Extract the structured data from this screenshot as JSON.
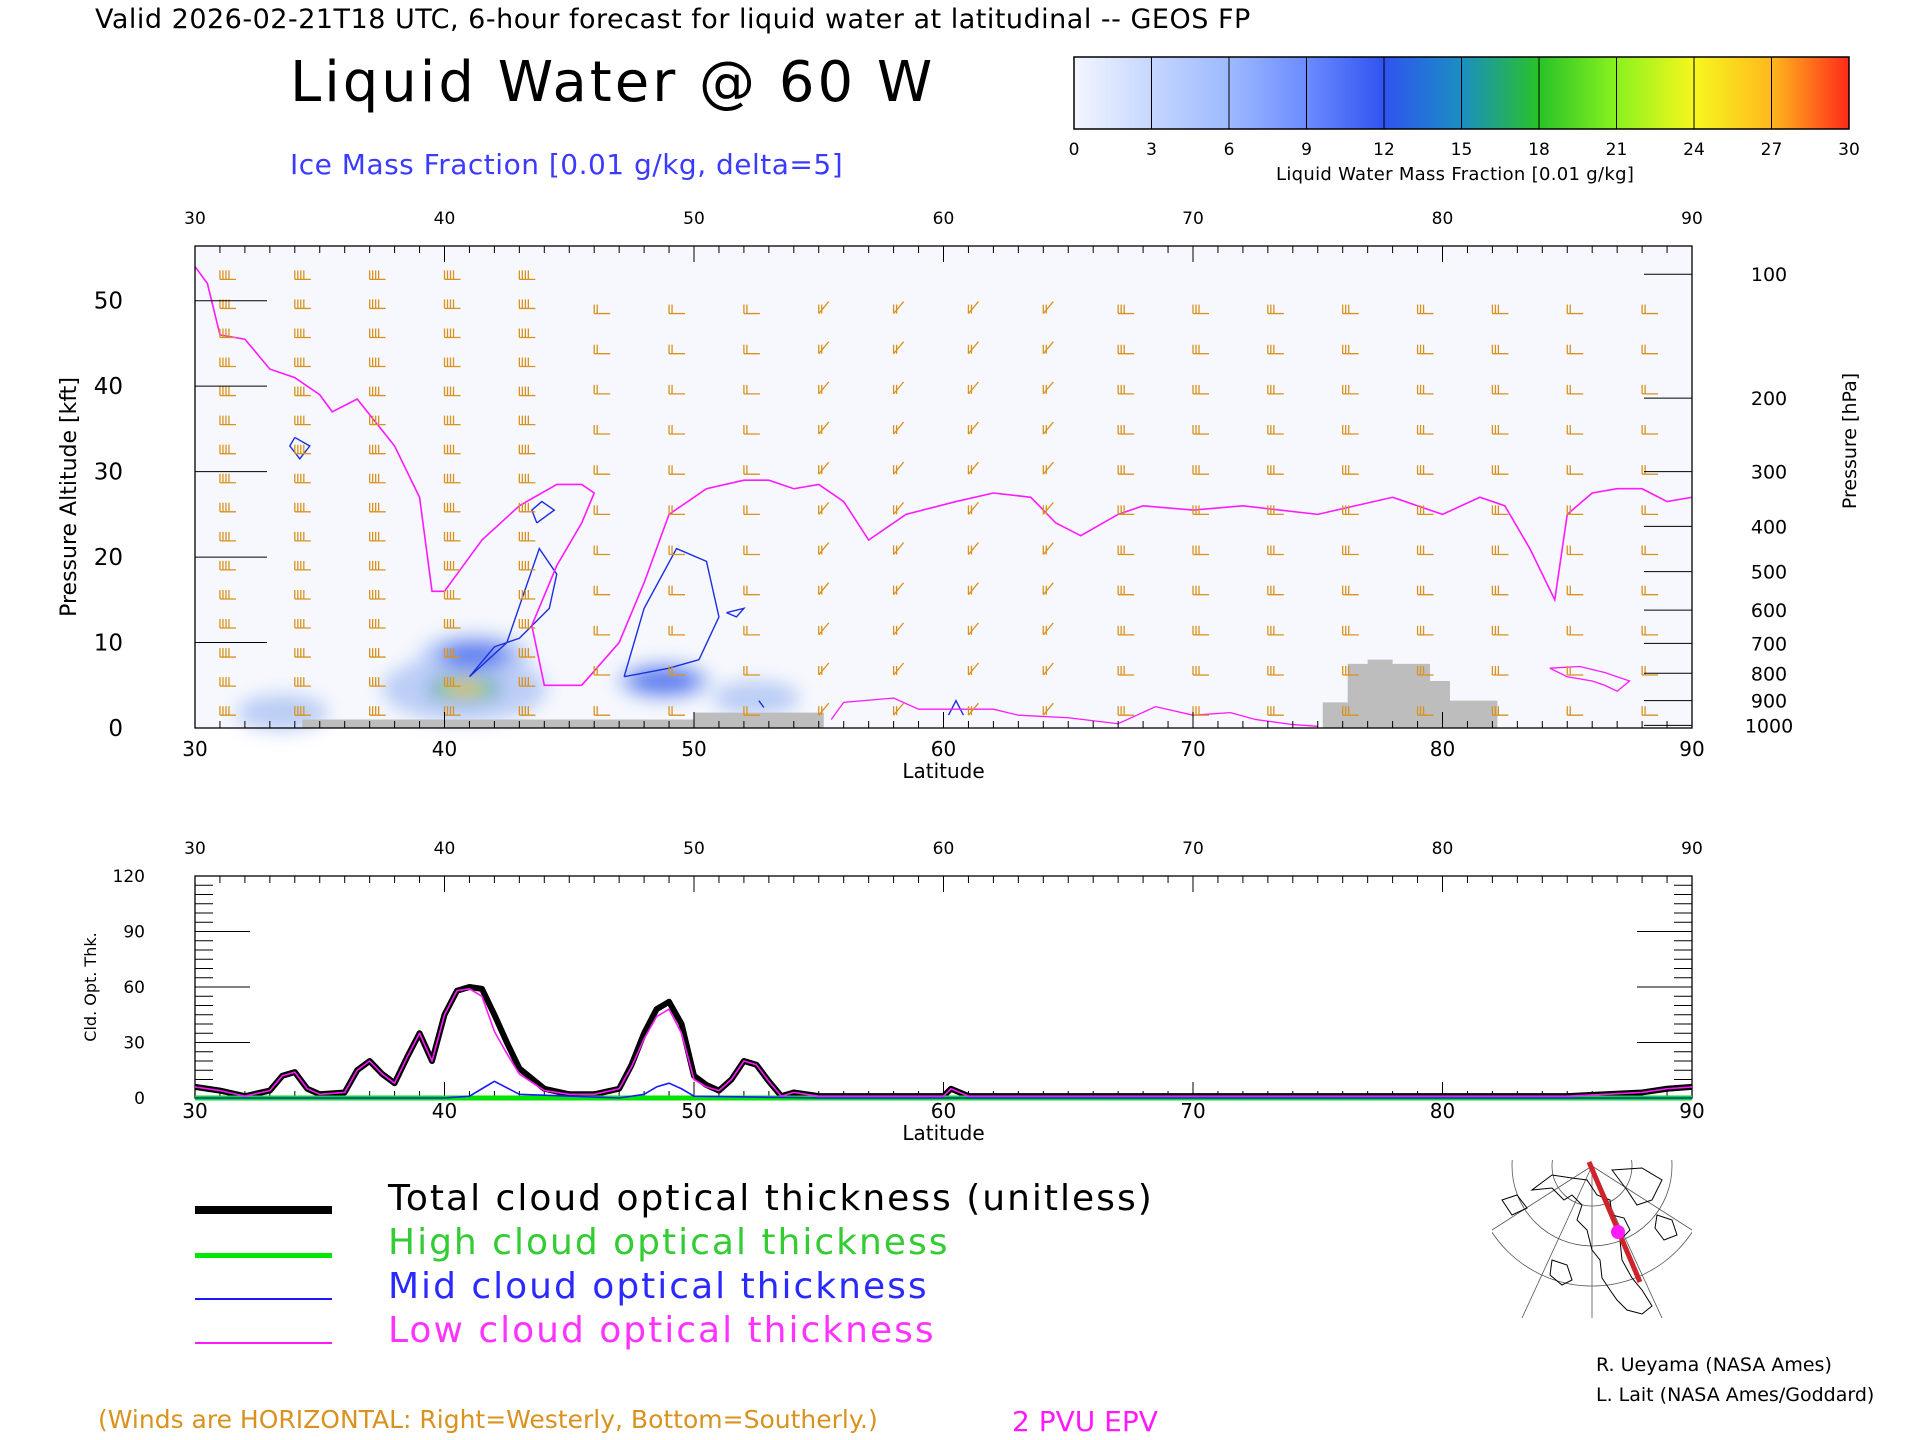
{
  "header": {
    "valid_line": "Valid 2026-02-21T18 UTC, 6-hour forecast for liquid water at latitudinal -- GEOS FP",
    "title": "Liquid Water @ 60 W",
    "ice_label": "Ice Mass Fraction [0.01 g/kg, delta=5]"
  },
  "colorbar": {
    "label": "Liquid Water Mass Fraction [0.01 g/kg]",
    "ticks": [
      "0",
      "3",
      "6",
      "9",
      "12",
      "15",
      "18",
      "21",
      "24",
      "27",
      "30"
    ],
    "colors": [
      "#f3f6ff",
      "#c5d6ff",
      "#9dbaff",
      "#6c8bff",
      "#2f54f0",
      "#1b8ec2",
      "#28c228",
      "#8af21e",
      "#f7f71e",
      "#ffb81e",
      "#ff2a1a"
    ]
  },
  "chart_data": [
    {
      "type": "heatmap",
      "title": "Liquid Water @ 60 W",
      "xlabel": "Latitude",
      "ylabel": "Pressure Altitude [kft]",
      "y2label": "Pressure [hPa]",
      "xlim": [
        30,
        90
      ],
      "ylim": [
        0,
        55
      ],
      "x_ticks": [
        "30",
        "40",
        "50",
        "60",
        "70",
        "80",
        "90"
      ],
      "y_ticks": [
        "0",
        "10",
        "20",
        "30",
        "40",
        "50"
      ],
      "pressure_ticks": [
        "100",
        "200",
        "300",
        "400",
        "500",
        "600",
        "700",
        "800",
        "900",
        "1000"
      ],
      "pressure_tick_kft": [
        53.1,
        38.6,
        30.0,
        23.6,
        18.3,
        13.8,
        9.9,
        6.4,
        3.2,
        0.3
      ],
      "liquid_water_blobs": [
        {
          "lat": 40.8,
          "kft": 4.6,
          "peak": 24
        },
        {
          "lat": 41.2,
          "kft": 8.5,
          "peak": 12
        },
        {
          "lat": 48.8,
          "kft": 5.5,
          "peak": 9
        },
        {
          "lat": 52.5,
          "kft": 3.5,
          "peak": 7
        },
        {
          "lat": 33.5,
          "kft": 1.8,
          "peak": 8
        }
      ],
      "epv_2pvu_kft": [
        [
          30,
          54
        ],
        [
          30.5,
          52
        ],
        [
          31,
          46
        ],
        [
          32,
          45.5
        ],
        [
          33,
          42
        ],
        [
          34,
          41
        ],
        [
          35,
          39
        ],
        [
          35.5,
          37
        ],
        [
          36.5,
          38.5
        ],
        [
          38,
          33
        ],
        [
          39,
          27
        ],
        [
          39.5,
          16
        ],
        [
          40,
          16
        ],
        [
          40.5,
          18
        ],
        [
          41.5,
          22
        ],
        [
          43,
          26
        ],
        [
          44.5,
          28.5
        ],
        [
          45.5,
          28.5
        ],
        [
          46,
          27.5
        ],
        [
          45.5,
          24
        ],
        [
          44.5,
          19
        ],
        [
          43.5,
          12
        ],
        [
          44,
          5
        ],
        [
          45.5,
          5
        ],
        [
          47,
          10
        ],
        [
          48,
          17
        ],
        [
          49,
          25
        ],
        [
          50.5,
          28
        ],
        [
          52,
          29
        ],
        [
          53,
          29
        ],
        [
          54,
          28
        ],
        [
          55,
          28.5
        ],
        [
          56,
          26.5
        ],
        [
          57,
          22
        ],
        [
          58.5,
          25
        ],
        [
          60.5,
          26.5
        ],
        [
          62,
          27.5
        ],
        [
          63.5,
          27
        ],
        [
          64.5,
          24
        ],
        [
          65.5,
          22.5
        ],
        [
          67,
          25
        ],
        [
          68,
          26
        ],
        [
          70,
          25.5
        ],
        [
          72,
          26
        ],
        [
          75,
          25
        ],
        [
          78,
          27
        ],
        [
          80,
          25
        ],
        [
          81.5,
          27
        ],
        [
          82.5,
          26
        ],
        [
          83.5,
          21
        ],
        [
          84.5,
          15
        ],
        [
          85,
          25
        ],
        [
          86,
          27.5
        ],
        [
          87,
          28
        ],
        [
          88,
          28
        ],
        [
          89,
          26.5
        ],
        [
          90,
          27
        ]
      ],
      "terrain_kft": [
        [
          30,
          0
        ],
        [
          34.3,
          0
        ],
        [
          34.3,
          1
        ],
        [
          50,
          1
        ],
        [
          50,
          1.8
        ],
        [
          55.2,
          1.8
        ],
        [
          55.2,
          0
        ],
        [
          75.2,
          0
        ],
        [
          75.2,
          3
        ],
        [
          76.2,
          3
        ],
        [
          76.2,
          7.5
        ],
        [
          77,
          7.5
        ],
        [
          77,
          8
        ],
        [
          78,
          8
        ],
        [
          78,
          7.5
        ],
        [
          79.5,
          7.5
        ],
        [
          79.5,
          5.5
        ],
        [
          80.3,
          5.5
        ],
        [
          80.3,
          3.2
        ],
        [
          82.2,
          3.2
        ],
        [
          82.2,
          0
        ],
        [
          90,
          0
        ]
      ]
    },
    {
      "type": "line",
      "xlabel": "Latitude",
      "ylabel": "Cld. Opt. Thk.",
      "xlim": [
        30,
        90
      ],
      "ylim": [
        0,
        120
      ],
      "x_ticks": [
        "30",
        "40",
        "50",
        "60",
        "70",
        "80",
        "90"
      ],
      "y_ticks": [
        "0",
        "30",
        "60",
        "90",
        "120"
      ],
      "series": [
        {
          "name": "Total cloud optical thickness (unitless)",
          "color": "#000000",
          "x": [
            30,
            31,
            32,
            33,
            33.5,
            34,
            34.5,
            35,
            36,
            36.5,
            37,
            37.5,
            38,
            38.5,
            39,
            39.5,
            40,
            40.5,
            41,
            41.5,
            42,
            42.5,
            43,
            44,
            45,
            46,
            47,
            47.5,
            48,
            48.5,
            49,
            49.5,
            50,
            50.5,
            51,
            51.5,
            52,
            52.5,
            53,
            53.5,
            54,
            55,
            58,
            60,
            60.3,
            61,
            65,
            70,
            75,
            80,
            85,
            88,
            89,
            90
          ],
          "y": [
            6,
            4,
            1,
            4,
            12,
            14,
            5,
            2,
            3,
            15,
            20,
            13,
            8,
            22,
            35,
            20,
            45,
            58,
            60,
            59,
            45,
            30,
            16,
            5,
            2,
            2,
            5,
            18,
            35,
            48,
            52,
            40,
            12,
            7,
            4,
            10,
            20,
            18,
            9,
            1,
            3,
            1,
            1,
            1,
            5,
            1,
            1,
            1,
            1,
            1,
            1,
            3,
            5,
            6
          ]
        },
        {
          "name": "High cloud optical thickness",
          "color": "#00e600",
          "x": [
            30,
            90
          ],
          "y": [
            0,
            0
          ]
        },
        {
          "name": "Mid cloud optical thickness",
          "color": "#1a1aff",
          "x": [
            30,
            40,
            41,
            41.5,
            42,
            43,
            47,
            48,
            48.5,
            49,
            49.5,
            50,
            55,
            90
          ],
          "y": [
            0,
            0,
            1,
            5,
            9,
            2,
            0,
            2,
            6,
            8,
            5,
            1,
            0,
            0
          ]
        },
        {
          "name": "Low cloud optical thickness",
          "color": "#ff19ff",
          "x": [
            30,
            31,
            32,
            33,
            33.5,
            34,
            34.5,
            35,
            36,
            36.5,
            37,
            37.5,
            38,
            38.5,
            39,
            39.5,
            40,
            40.5,
            41,
            41.5,
            42,
            42.5,
            43,
            44,
            45,
            46,
            47,
            47.5,
            48,
            48.5,
            49,
            49.5,
            50,
            50.5,
            51,
            51.5,
            52,
            52.5,
            53,
            53.5,
            54,
            55,
            58,
            60,
            60.3,
            61,
            65,
            70,
            75,
            80,
            85,
            88,
            89,
            90
          ],
          "y": [
            6,
            4,
            1,
            4,
            12,
            14,
            5,
            2,
            3,
            15,
            20,
            13,
            8,
            22,
            35,
            20,
            45,
            58,
            59,
            55,
            36,
            24,
            13,
            4,
            2,
            2,
            5,
            17,
            32,
            44,
            48,
            35,
            10,
            6,
            4,
            10,
            20,
            18,
            9,
            1,
            3,
            1,
            1,
            1,
            5,
            1,
            1,
            1,
            1,
            1,
            1,
            3,
            5,
            6
          ]
        }
      ]
    }
  ],
  "legend": {
    "total": "Total cloud optical thickness (unitless)",
    "high": "High cloud optical thickness",
    "mid": "Mid cloud optical thickness",
    "low": "Low cloud optical thickness"
  },
  "footer": {
    "credit1": "R. Ueyama (NASA Ames)",
    "credit2": "L. Lait (NASA Ames/Goddard)",
    "winds_note": "(Winds are HORIZONTAL: Right=Westerly, Bottom=Southerly.)",
    "pvu_note": "2 PVU EPV"
  }
}
